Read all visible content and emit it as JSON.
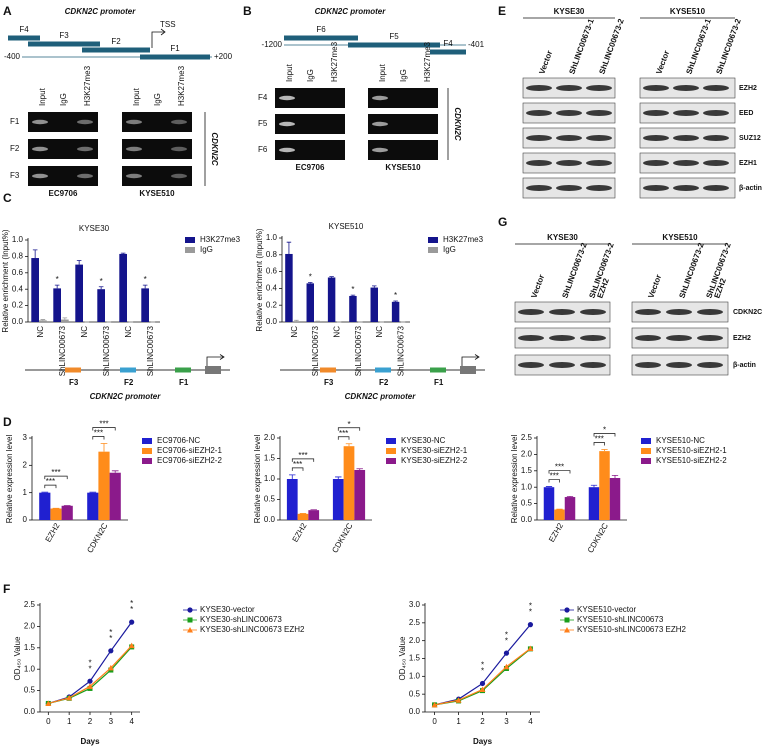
{
  "figure": {
    "panel_A": {
      "label": "A",
      "title": "CDKN2C promoter",
      "fragments": [
        "F4",
        "F3",
        "F2",
        "F1"
      ],
      "tss": "TSS",
      "range": [
        "-400",
        "+200"
      ],
      "lanes": [
        "Input",
        "IgG",
        "H3K27me3"
      ],
      "rows": [
        "F1",
        "F2",
        "F3"
      ],
      "cell_lines": [
        "EC9706",
        "KYSE510"
      ],
      "gene": "CDKN2C"
    },
    "panel_B": {
      "label": "B",
      "title": "CDKN2C promoter",
      "fragments": [
        "F6",
        "F5",
        "F4"
      ],
      "range": [
        "-1200",
        "-401"
      ],
      "lanes": [
        "Input",
        "IgG",
        "H3K27me3"
      ],
      "rows": [
        "F4",
        "F5",
        "F6"
      ],
      "cell_lines": [
        "EC9706",
        "KYSE510"
      ],
      "gene": "CDKN2C"
    },
    "panel_C": {
      "label": "C",
      "promoter_diagrams": [
        {
          "fragments": [
            "F3",
            "F2",
            "F1"
          ],
          "title": "CDKN2C promoter"
        },
        {
          "fragments": [
            "F3",
            "F2",
            "F1"
          ],
          "title": "CDKN2C promoter"
        }
      ]
    },
    "panel_D": {
      "label": "D"
    },
    "panel_E": {
      "label": "E",
      "cell_lines": [
        "KYSE30",
        "KYSE510"
      ],
      "lanes": [
        "Vector",
        "ShLINC00673-1",
        "ShLINC00673-2"
      ],
      "rows": [
        "EZH2",
        "EED",
        "SUZ12",
        "EZH1",
        "β-actin"
      ]
    },
    "panel_F": {
      "label": "F"
    },
    "panel_G": {
      "label": "G",
      "cell_lines": [
        "KYSE30",
        "KYSE510"
      ],
      "lanes": [
        [
          "Vector"
        ],
        [
          "ShLINC00673-2"
        ],
        [
          "ShLINC00673-2",
          "EZH2"
        ]
      ],
      "rows": [
        "CDKN2C",
        "EZH2",
        "β-actin"
      ]
    }
  },
  "chart_data": [
    {
      "type": "bar",
      "title": "KYSE30",
      "y_label": "Relative enrichment (Input%)",
      "categories": [
        "NC",
        "ShLINC00673",
        "NC",
        "ShLINC00673",
        "NC",
        "ShLINC00673"
      ],
      "series": [
        {
          "name": "H3K27me3",
          "color": "#14148c",
          "values": [
            0.78,
            0.41,
            0.7,
            0.4,
            0.83,
            0.41
          ],
          "errors": [
            0.1,
            0.04,
            0.05,
            0.03,
            0.01,
            0.04
          ]
        },
        {
          "name": "IgG",
          "color": "#9a9a9a",
          "values": [
            0.02,
            0.03,
            0,
            0,
            0,
            0
          ],
          "errors": [
            0.01,
            0.02,
            0,
            0,
            0,
            0
          ]
        }
      ],
      "ylim": [
        0,
        1.0
      ],
      "yticks": [
        {
          "value": 0,
          "label": "0.0"
        },
        0.2,
        0.4,
        0.6,
        0.8,
        {
          "value": 1,
          "label": "1.0"
        }
      ],
      "legend": "upper right",
      "annotations": [
        {
          "category": 1,
          "series": 0,
          "text": "*"
        },
        {
          "category": 3,
          "series": 0,
          "text": "*"
        },
        {
          "category": 5,
          "series": 0,
          "text": "*"
        }
      ]
    },
    {
      "type": "bar",
      "title": "KYSE510",
      "y_label": "Relative enrichment (Input%)",
      "categories": [
        "NC",
        "ShLINC00673",
        "NC",
        "ShLINC00673",
        "NC",
        "ShLINC00673"
      ],
      "series": [
        {
          "name": "H3K27me3",
          "color": "#14148c",
          "values": [
            0.81,
            0.46,
            0.53,
            0.31,
            0.41,
            0.24
          ],
          "errors": [
            0.14,
            0.01,
            0.01,
            0.01,
            0.02,
            0.01
          ]
        },
        {
          "name": "IgG",
          "color": "#9a9a9a",
          "values": [
            0.01,
            0.01,
            0,
            0,
            0,
            0
          ],
          "errors": [
            0.01,
            0,
            0,
            0,
            0,
            0
          ]
        }
      ],
      "ylim": [
        0,
        1.0
      ],
      "yticks": [
        {
          "value": 0,
          "label": "0.0"
        },
        0.2,
        0.4,
        0.6,
        0.8,
        {
          "value": 1,
          "label": "1.0"
        }
      ],
      "legend": "upper right",
      "annotations": [
        {
          "category": 1,
          "series": 0,
          "text": "*"
        },
        {
          "category": 3,
          "series": 0,
          "text": "*"
        },
        {
          "category": 5,
          "series": 0,
          "text": "*"
        }
      ]
    },
    {
      "type": "bar",
      "y_label": "Relative expression level",
      "categories": [
        "EZH2",
        "CDKN2C"
      ],
      "series": [
        {
          "name": "EC9706-NC",
          "color": "#2020d0",
          "values": [
            1.0,
            1.0
          ],
          "errors": [
            0.02,
            0.02
          ]
        },
        {
          "name": "EC9706-siEZH2-1",
          "color": "#ff8c1a",
          "values": [
            0.42,
            2.5
          ],
          "errors": [
            0.01,
            0.3
          ]
        },
        {
          "name": "EC9706-siEZH2-2",
          "color": "#8b1a8b",
          "values": [
            0.52,
            1.73
          ],
          "errors": [
            0.01,
            0.07
          ]
        }
      ],
      "ylim": [
        0,
        3
      ],
      "yticks": [
        0,
        1,
        2,
        3
      ],
      "legend": "right",
      "annotations": [
        {
          "category": 0,
          "series": [
            0,
            1
          ],
          "text": "***"
        },
        {
          "category": 0,
          "series": [
            0,
            2
          ],
          "text": "***"
        },
        {
          "category": 1,
          "series": [
            0,
            1
          ],
          "text": "***"
        },
        {
          "category": 1,
          "series": [
            0,
            2
          ],
          "text": "***"
        }
      ]
    },
    {
      "type": "bar",
      "y_label": "Relative expression level",
      "categories": [
        "EZH2",
        "CDKN2C"
      ],
      "series": [
        {
          "name": "KYSE30-NC",
          "color": "#2020d0",
          "values": [
            1.0,
            1.0
          ],
          "errors": [
            0.1,
            0.05
          ]
        },
        {
          "name": "KYSE30-siEZH2-1",
          "color": "#ff8c1a",
          "values": [
            0.15,
            1.8
          ],
          "errors": [
            0.01,
            0.06
          ]
        },
        {
          "name": "KYSE30-siEZH2-2",
          "color": "#8b1a8b",
          "values": [
            0.24,
            1.22
          ],
          "errors": [
            0.01,
            0.03
          ]
        }
      ],
      "ylim": [
        0,
        2.0
      ],
      "yticks": [
        {
          "value": 0,
          "label": "0.0"
        },
        0.5,
        {
          "value": 1,
          "label": "1.0"
        },
        1.5,
        {
          "value": 2,
          "label": "2.0"
        }
      ],
      "legend": "right",
      "annotations": [
        {
          "category": 0,
          "series": [
            0,
            1
          ],
          "text": "***"
        },
        {
          "category": 0,
          "series": [
            0,
            2
          ],
          "text": "***"
        },
        {
          "category": 1,
          "series": [
            0,
            1
          ],
          "text": "***"
        },
        {
          "category": 1,
          "series": [
            0,
            2
          ],
          "text": "*"
        }
      ]
    },
    {
      "type": "bar",
      "y_label": "Relative expression level",
      "categories": [
        "EZH2",
        "CDKN2C"
      ],
      "series": [
        {
          "name": "KYSE510-NC",
          "color": "#2020d0",
          "values": [
            1.0,
            1.0
          ],
          "errors": [
            0.02,
            0.06
          ]
        },
        {
          "name": "KYSE510-siEZH2-1",
          "color": "#ff8c1a",
          "values": [
            0.32,
            2.1
          ],
          "errors": [
            0.01,
            0.05
          ]
        },
        {
          "name": "KYSE510-siEZH2-2",
          "color": "#8b1a8b",
          "values": [
            0.7,
            1.28
          ],
          "errors": [
            0.02,
            0.08
          ]
        }
      ],
      "ylim": [
        0,
        2.5
      ],
      "yticks": [
        {
          "value": 0,
          "label": "0.0"
        },
        0.5,
        {
          "value": 1,
          "label": "1.0"
        },
        1.5,
        {
          "value": 2,
          "label": "2.0"
        },
        2.5
      ],
      "legend": "right",
      "annotations": [
        {
          "category": 0,
          "series": [
            0,
            1
          ],
          "text": "***"
        },
        {
          "category": 0,
          "series": [
            0,
            2
          ],
          "text": "***"
        },
        {
          "category": 1,
          "series": [
            0,
            1
          ],
          "text": "***"
        },
        {
          "category": 1,
          "series": [
            0,
            2
          ],
          "text": "*"
        }
      ]
    },
    {
      "type": "line",
      "x_label": "Days",
      "y_label": "OD₄₅₀ Value",
      "x": [
        0,
        1,
        2,
        3,
        4
      ],
      "series": [
        {
          "name": "KYSE30-vector",
          "color": "#1a1a9e",
          "marker": "circle",
          "values": [
            0.2,
            0.35,
            0.72,
            1.43,
            2.1
          ]
        },
        {
          "name": "KYSE30-shLINC00673",
          "color": "#1a9e1a",
          "marker": "square",
          "values": [
            0.2,
            0.32,
            0.55,
            0.98,
            1.52
          ]
        },
        {
          "name": "KYSE30-shLINC00673 EZH2",
          "color": "#ff7f1a",
          "marker": "triangle",
          "values": [
            0.2,
            0.33,
            0.6,
            1.03,
            1.55
          ]
        }
      ],
      "xlim": [
        -0.4,
        4.4
      ],
      "xticks": [
        0,
        1,
        2,
        3,
        4
      ],
      "ylim": [
        0,
        2.5
      ],
      "yticks": [
        {
          "value": 0,
          "label": "0.0"
        },
        0.5,
        {
          "value": 1,
          "label": "1.0"
        },
        1.5,
        {
          "value": 2,
          "label": "2.0"
        },
        2.5
      ],
      "legend": "right",
      "annotations": [
        {
          "x": 2,
          "text": "*",
          "color": "#ff7f1a"
        },
        {
          "x": 2,
          "text": "*",
          "color": "#1a9e1a"
        },
        {
          "x": 3,
          "text": "*",
          "color": "#ff7f1a"
        },
        {
          "x": 3,
          "text": "*",
          "color": "#1a9e1a"
        },
        {
          "x": 4,
          "text": "*",
          "color": "#ff7f1a"
        },
        {
          "x": 4,
          "text": "*",
          "color": "#1a9e1a"
        }
      ]
    },
    {
      "type": "line",
      "x_label": "Days",
      "y_label": "OD₄₅₀ Value",
      "x": [
        0,
        1,
        2,
        3,
        4
      ],
      "series": [
        {
          "name": "KYSE510-vector",
          "color": "#1a1a9e",
          "marker": "circle",
          "values": [
            0.2,
            0.36,
            0.8,
            1.65,
            2.45
          ]
        },
        {
          "name": "KYSE510-shLINC00673",
          "color": "#1a9e1a",
          "marker": "square",
          "values": [
            0.2,
            0.31,
            0.6,
            1.22,
            1.77
          ]
        },
        {
          "name": "KYSE510-shLINC00673 EZH2",
          "color": "#ff7f1a",
          "marker": "triangle",
          "values": [
            0.2,
            0.33,
            0.63,
            1.27,
            1.78
          ]
        }
      ],
      "xlim": [
        -0.4,
        4.4
      ],
      "xticks": [
        0,
        1,
        2,
        3,
        4
      ],
      "ylim": [
        0,
        3.0
      ],
      "yticks": [
        {
          "value": 0,
          "label": "0.0"
        },
        0.5,
        {
          "value": 1,
          "label": "1.0"
        },
        1.5,
        {
          "value": 2,
          "label": "2.0"
        },
        2.5,
        {
          "value": 3,
          "label": "3.0"
        }
      ],
      "legend": "right",
      "annotations": [
        {
          "x": 2,
          "text": "*",
          "color": "#ff7f1a"
        },
        {
          "x": 2,
          "text": "*",
          "color": "#1a9e1a"
        },
        {
          "x": 3,
          "text": "*",
          "color": "#ff7f1a"
        },
        {
          "x": 3,
          "text": "*",
          "color": "#1a9e1a"
        },
        {
          "x": 4,
          "text": "*",
          "color": "#ff7f1a"
        },
        {
          "x": 4,
          "text": "*",
          "color": "#1a9e1a"
        }
      ]
    }
  ]
}
